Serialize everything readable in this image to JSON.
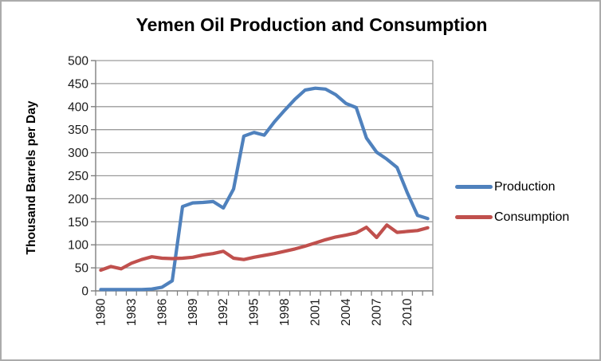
{
  "chart_data": {
    "type": "line",
    "title": "Yemen Oil Production and Consumption",
    "xlabel": "",
    "ylabel": "Thousand Barrels per Day",
    "ylim": [
      0,
      500
    ],
    "ytick_step": 50,
    "xtick_label_every": 3,
    "grid": true,
    "legend_position": "right-middle",
    "grid_color": "#9c9c9c",
    "axis_color": "#7f7f7f",
    "text_color": "#1a1a1a",
    "categories": [
      1980,
      1981,
      1982,
      1983,
      1984,
      1985,
      1986,
      1987,
      1988,
      1989,
      1990,
      1991,
      1992,
      1993,
      1994,
      1995,
      1996,
      1997,
      1998,
      1999,
      2000,
      2001,
      2002,
      2003,
      2004,
      2005,
      2006,
      2007,
      2008,
      2009,
      2010,
      2011,
      2012
    ],
    "series": [
      {
        "name": "Production",
        "color": "#4F81BD",
        "values": [
          3,
          3,
          3,
          3,
          3,
          4,
          8,
          22,
          183,
          191,
          192,
          194,
          180,
          221,
          336,
          344,
          338,
          367,
          392,
          416,
          436,
          440,
          438,
          426,
          407,
          398,
          332,
          301,
          286,
          268,
          213,
          164,
          157
        ]
      },
      {
        "name": "Consumption",
        "color": "#C0504D",
        "values": [
          45,
          53,
          48,
          60,
          68,
          74,
          71,
          70,
          71,
          73,
          78,
          81,
          86,
          71,
          68,
          73,
          77,
          81,
          86,
          91,
          97,
          104,
          111,
          117,
          121,
          126,
          138,
          116,
          143,
          127,
          129,
          131,
          137
        ]
      }
    ]
  }
}
